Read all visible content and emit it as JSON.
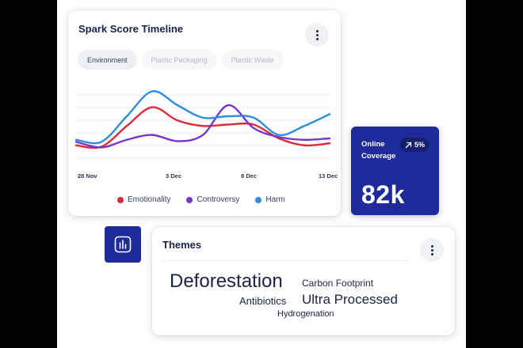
{
  "timeline": {
    "title": "Spark Score Timeline",
    "tabs": [
      {
        "label": "Environment",
        "active": true
      },
      {
        "label": "Plastic Packaging",
        "active": false
      },
      {
        "label": "Plastic Waste",
        "active": false
      }
    ],
    "legend": [
      {
        "label": "Emotionality",
        "color": "#d92b3a"
      },
      {
        "label": "Controversy",
        "color": "#7b35c4"
      },
      {
        "label": "Harm",
        "color": "#2b8de0"
      }
    ]
  },
  "chart_data": {
    "type": "line",
    "x_ticks": [
      "28 Nov",
      "3 Dec",
      "8 Dec",
      "13 Dec"
    ],
    "grid": true,
    "series": [
      {
        "name": "Emotionality",
        "color": "#d92b3a",
        "values": [
          30,
          28,
          58,
          85,
          66,
          58,
          60,
          60,
          40,
          30,
          33
        ]
      },
      {
        "name": "Controversy",
        "color": "#7b35c4",
        "values": [
          35,
          27,
          38,
          45,
          36,
          45,
          88,
          55,
          42,
          38,
          40
        ]
      },
      {
        "name": "Harm",
        "color": "#2b8de0",
        "values": [
          38,
          35,
          72,
          108,
          88,
          70,
          72,
          70,
          45,
          58,
          75
        ]
      }
    ],
    "ylim": [
      0,
      120
    ]
  },
  "coverage": {
    "label": "Online Coverage",
    "trend": "5%",
    "value": "82k",
    "trend_icon": "arrow-up-right-icon"
  },
  "themes": {
    "title": "Themes",
    "words": [
      {
        "text": "Deforestation"
      },
      {
        "text": "Carbon Footprint"
      },
      {
        "text": "Antibiotics"
      },
      {
        "text": "Ultra Processed"
      },
      {
        "text": "Hydrogenation"
      }
    ]
  }
}
